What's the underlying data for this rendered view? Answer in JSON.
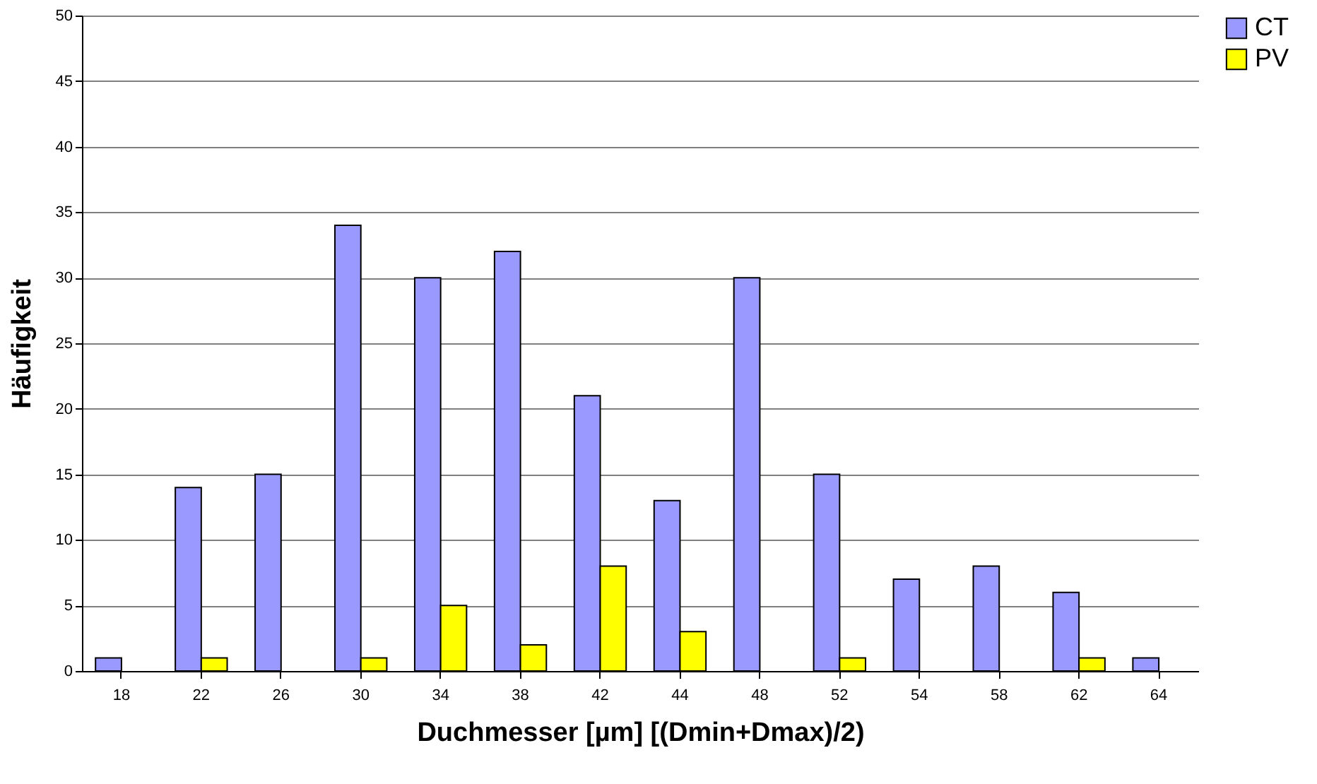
{
  "chart_data": {
    "type": "bar",
    "xlabel": "Duchmesser [µm]     [(Dmin+Dmax)/2)",
    "ylabel": "Häufigkeit",
    "categories": [
      "18",
      "22",
      "26",
      "30",
      "34",
      "38",
      "42",
      "44",
      "48",
      "52",
      "54",
      "58",
      "62",
      "64"
    ],
    "series": [
      {
        "name": "CT",
        "color": "#9999ff",
        "values": [
          1,
          14,
          15,
          34,
          30,
          32,
          21,
          13,
          30,
          15,
          7,
          8,
          6,
          1
        ]
      },
      {
        "name": "PV",
        "color": "#ffff00",
        "values": [
          null,
          1,
          null,
          1,
          5,
          2,
          8,
          3,
          null,
          1,
          null,
          null,
          1,
          null
        ]
      }
    ],
    "ylim": [
      0,
      50
    ],
    "yticks": [
      0,
      5,
      10,
      15,
      20,
      25,
      30,
      35,
      40,
      45,
      50
    ],
    "grid": "y",
    "legend": "right"
  }
}
